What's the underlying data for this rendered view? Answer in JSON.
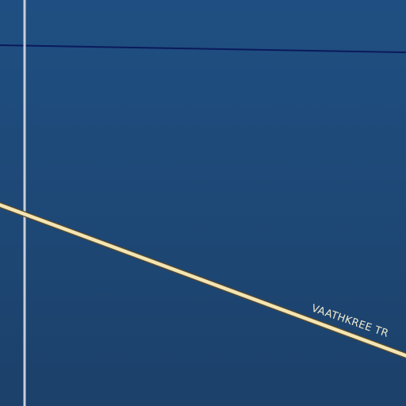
{
  "map": {
    "colors": {
      "background_top": "#1f4f82",
      "background_bottom": "#1c416a",
      "major_road_fill": "#f3e6b4",
      "major_road_casing": "#5b4a2c",
      "boundary_line": "#0b1a5c",
      "minor_road": "#c9ced8"
    },
    "roads": [
      {
        "name": "VAATHKREE TR",
        "type": "major-road"
      }
    ],
    "features": [
      {
        "type": "boundary-line"
      },
      {
        "type": "minor-road-vertical"
      }
    ]
  }
}
